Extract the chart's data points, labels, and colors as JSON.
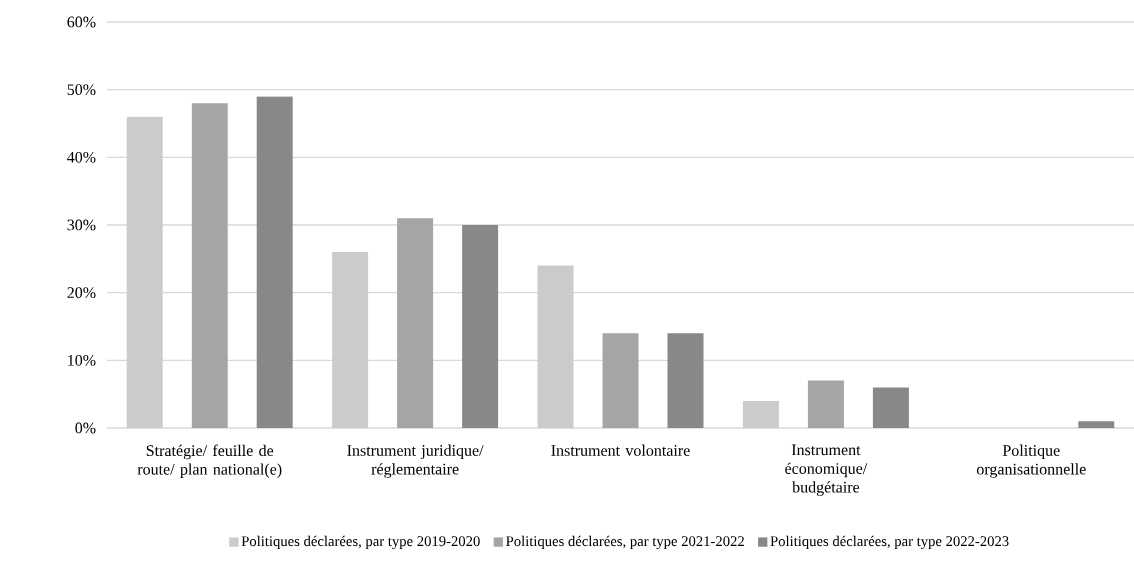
{
  "chart_data": {
    "type": "bar",
    "categories": [
      "Stratégie/ feuille de route/ plan national(e)",
      "Instrument juridique/ réglementaire",
      "Instrument volontaire",
      "Instrument économique/ budgétaire",
      "Politique organisationnelle"
    ],
    "series": [
      {
        "name": "Politiques déclarées, par type 2019-2020",
        "color": "#cbcbcb",
        "values": [
          46,
          26,
          24,
          4,
          0
        ]
      },
      {
        "name": "Politiques déclarées, par type 2021-2022",
        "color": "#a5a5a5",
        "values": [
          48,
          31,
          14,
          7,
          0
        ]
      },
      {
        "name": "Politiques déclarées, par type 2022-2023",
        "color": "#888888",
        "values": [
          49,
          30,
          14,
          6,
          1
        ]
      }
    ],
    "ylim": [
      0,
      60
    ],
    "yticks": [
      {
        "value": 0,
        "label": "0%"
      },
      {
        "value": 10,
        "label": "10%"
      },
      {
        "value": 20,
        "label": "20%"
      },
      {
        "value": 30,
        "label": "30%"
      },
      {
        "value": 40,
        "label": "40%"
      },
      {
        "value": 50,
        "label": "50%"
      },
      {
        "value": 60,
        "label": "60%"
      }
    ],
    "grid": "y",
    "legend": "bottom"
  }
}
